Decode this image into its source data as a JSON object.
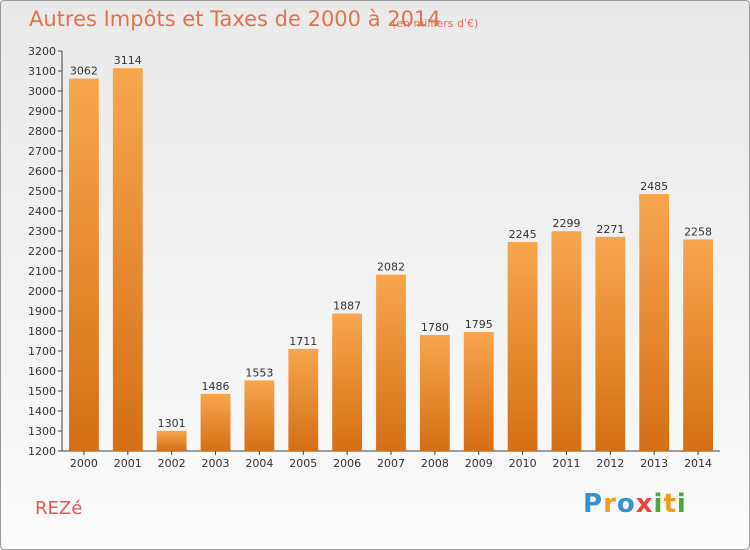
{
  "header": {
    "title": "Autres Impôts et Taxes de 2000 à 2014",
    "subtitle": "(en milliers d'€)"
  },
  "footer": {
    "commune": "REZé",
    "logo_letters": [
      "P",
      "r",
      "o",
      "x",
      "i",
      "t",
      "i"
    ],
    "logo_colors": [
      "#3a8fd0",
      "#f29a1f",
      "#3a8fd0",
      "#e8453c",
      "#47a83c",
      "#f29a1f",
      "#47a83c"
    ]
  },
  "colors": {
    "bar_light": "#f7a64e",
    "bar_dark": "#d46f14",
    "accent_text": "#e0734f"
  },
  "chart_data": {
    "type": "bar",
    "title": "Autres Impôts et Taxes de 2000 à 2014",
    "subtitle": "(en milliers d'€)",
    "categories": [
      "2000",
      "2001",
      "2002",
      "2003",
      "2004",
      "2005",
      "2006",
      "2007",
      "2008",
      "2009",
      "2010",
      "2011",
      "2012",
      "2013",
      "2014"
    ],
    "values": [
      3062,
      3114,
      1301,
      1486,
      1553,
      1711,
      1887,
      2082,
      1780,
      1795,
      2245,
      2299,
      2271,
      2485,
      2258
    ],
    "ylim": [
      1200,
      3200
    ],
    "ytick_step": 100,
    "grid": false
  }
}
